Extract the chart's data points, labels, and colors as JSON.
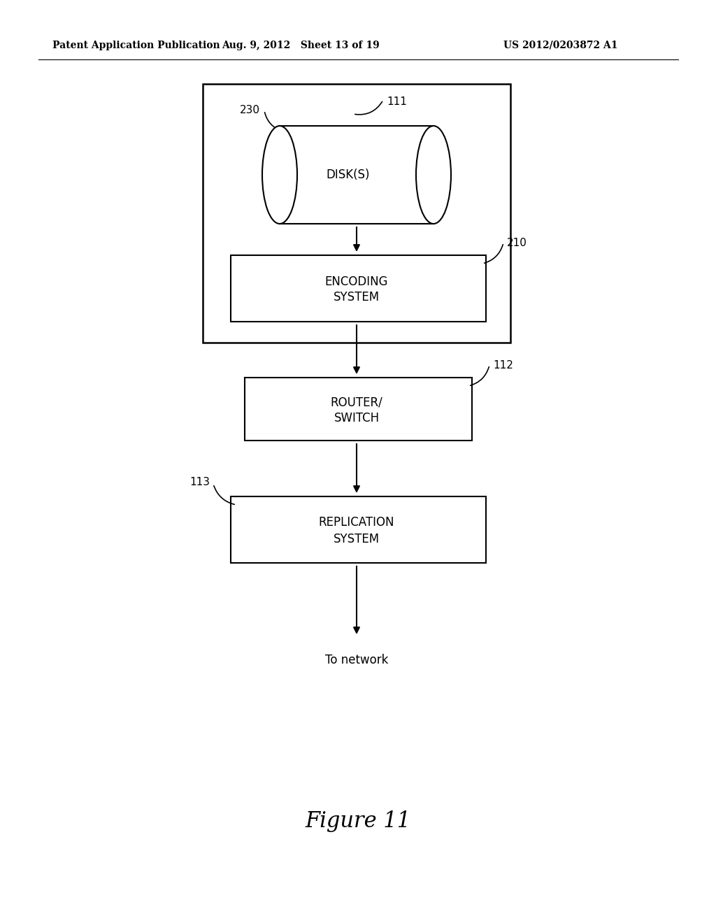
{
  "bg_color": "#ffffff",
  "header_left": "Patent Application Publication",
  "header_mid": "Aug. 9, 2012   Sheet 13 of 19",
  "header_right": "US 2012/0203872 A1",
  "figure_caption": "Figure 11",
  "disk_label": "DISK(S)",
  "disk_ref": "230",
  "encoding_label_1": "ENCODING",
  "encoding_label_2": "SYSTEM",
  "encoding_ref": "210",
  "outer_ref": "111",
  "router_label_1": "ROUTER/",
  "router_label_2": "SWITCH",
  "router_ref": "112",
  "replication_label_1": "REPLICATION",
  "replication_label_2": "SYSTEM",
  "replication_ref": "113",
  "network_label": "To network",
  "lw_outer": 1.8,
  "lw_inner": 1.5,
  "lw_arrow": 1.5,
  "fontsize_label": 12,
  "fontsize_ref": 11,
  "fontsize_header": 10,
  "fontsize_caption": 22
}
